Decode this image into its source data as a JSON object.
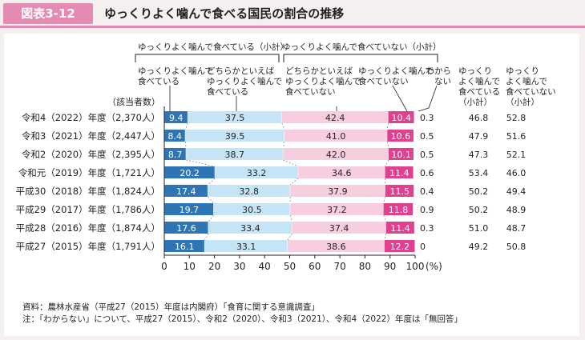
{
  "figure": {
    "label": "図表3-12",
    "title": "ゆっくりよく噛んで食べる国民の割合の推移"
  },
  "legend": {
    "group_eat_slowly": "ゆっくりよく噛んで食べている（小計）",
    "group_not_slowly": "ゆっくりよく噛んで食べていない（小計）",
    "cat1": [
      "ゆっくりよく噛んで",
      "食べている"
    ],
    "cat2": [
      "どちらかといえば",
      "ゆっくりよく噛んで",
      "食べている"
    ],
    "cat3": [
      "どちらかといえば",
      "ゆっくりよく噛んで",
      "食べていない"
    ],
    "cat4": [
      "ゆっくりよく噛んで",
      "食べていない"
    ],
    "cat5": [
      "わから",
      "ない"
    ],
    "subtotal_yes": [
      "ゆっくり",
      "よく噛んで",
      "食べている",
      "（小計）"
    ],
    "subtotal_no": [
      "ゆっくり",
      "よく噛んで",
      "食べていない",
      "（小計）"
    ],
    "respondents": "（該当者数）"
  },
  "chart_data": {
    "type": "bar",
    "orientation": "horizontal",
    "stacked": true,
    "percent_suffix": "(%)",
    "xlim": [
      0,
      100
    ],
    "xticks": [
      "0",
      "10",
      "20",
      "30",
      "40",
      "50",
      "60",
      "70",
      "80",
      "90",
      "100"
    ],
    "categories": [
      "令和4（2022）年度（2,370人）",
      "令和3（2021）年度（2,447人）",
      "令和2（2020）年度（2,395人）",
      "令和元（2019）年度（1,721人）",
      "平成30（2018）年度（1,824人）",
      "平成29（2017）年度（1,786人）",
      "平成28（2016）年度（1,874人）",
      "平成27（2015）年度（1,791人）"
    ],
    "series": [
      {
        "name": "ゆっくりよく噛んで食べている",
        "color": "#2e75b6",
        "text_color": "#ffffff",
        "values": [
          "9.4",
          "8.4",
          "8.7",
          "20.2",
          "17.4",
          "19.7",
          "17.6",
          "16.1"
        ]
      },
      {
        "name": "どちらかといえばゆっくりよく噛んで食べている",
        "color": "#c5e5f7",
        "text_color": "#231f20",
        "values": [
          "37.5",
          "39.5",
          "38.7",
          "33.2",
          "32.8",
          "30.5",
          "33.4",
          "33.1"
        ]
      },
      {
        "name": "どちらかといえばゆっくりよく噛んで食べていない",
        "color": "#f7cde0",
        "text_color": "#231f20",
        "values": [
          "42.4",
          "41.0",
          "42.0",
          "34.6",
          "37.9",
          "37.2",
          "37.4",
          "38.6"
        ]
      },
      {
        "name": "ゆっくりよく噛んで食べていない",
        "color": "#e1408f",
        "text_color": "#ffffff",
        "values": [
          "10.4",
          "10.6",
          "10.1",
          "11.4",
          "11.5",
          "11.8",
          "11.4",
          "12.2"
        ]
      },
      {
        "name": "わからない",
        "color": "#ffffff",
        "text_color": "#231f20",
        "values": [
          "0.3",
          "0.5",
          "0.5",
          "0.6",
          "0.4",
          "0.9",
          "0.3",
          "0"
        ]
      }
    ],
    "subtotal_yes": [
      "46.8",
      "47.9",
      "47.3",
      "53.4",
      "50.2",
      "50.2",
      "51.0",
      "49.2"
    ],
    "subtotal_no": [
      "52.8",
      "51.6",
      "52.1",
      "46.0",
      "49.4",
      "48.9",
      "48.7",
      "50.8"
    ]
  },
  "notes": {
    "source": "資料：農林水産省（平成27（2015）年度は内閣府）「食育に関する意識調査」",
    "note": "注：「わからない」について、平成27（2015）、令和2（2020）、令和3（2021）、令和4（2022）年度は「無回答」"
  }
}
